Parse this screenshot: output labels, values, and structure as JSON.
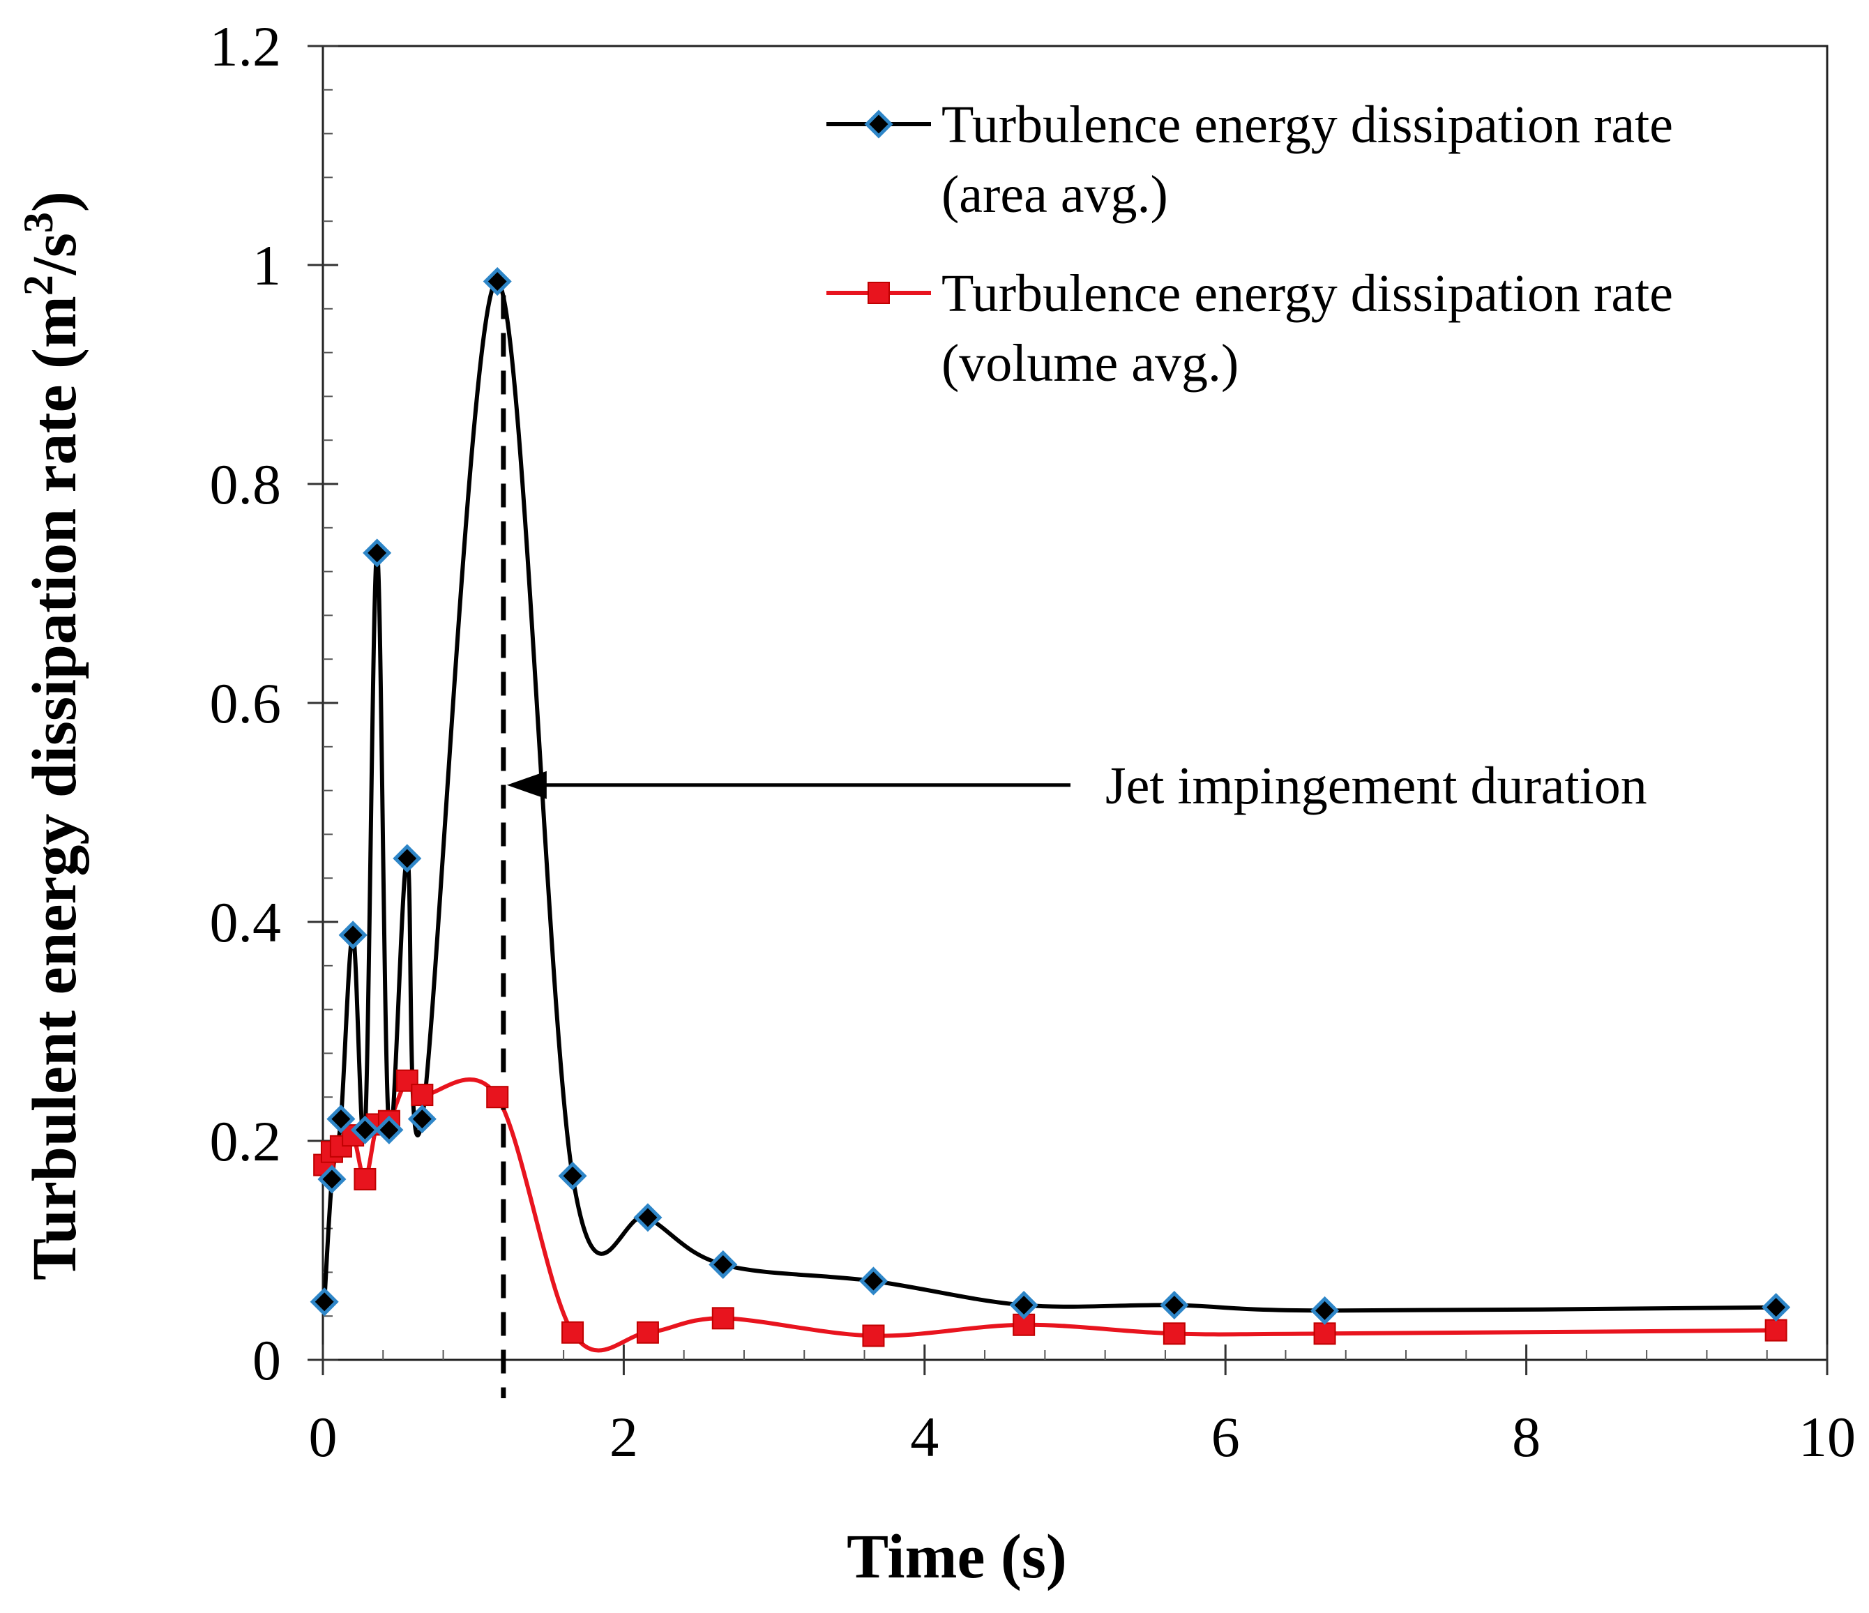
{
  "chart_data": {
    "type": "line",
    "title": "",
    "xlabel": "Time (s)",
    "ylabel": "Turbulent energy dissipation rate (m",
    "ylabel_sup1": "2",
    "ylabel_mid": "/s",
    "ylabel_sup2": "3",
    "ylabel_end": ")",
    "xlim": [
      0,
      10
    ],
    "ylim": [
      0,
      1.2
    ],
    "xticks": [
      0,
      2,
      4,
      6,
      8,
      10
    ],
    "xtick_labels": [
      "0",
      "2",
      "4",
      "6",
      "8",
      "10"
    ],
    "yticks": [
      0,
      0.2,
      0.4,
      0.6,
      0.8,
      1,
      1.2
    ],
    "ytick_labels": [
      "0",
      "0.2",
      "0.4",
      "0.6",
      "0.8",
      "1",
      "1.2"
    ],
    "grid": false,
    "legend_position": "top-right",
    "series": [
      {
        "name": "area",
        "legend_line1": "Turbulence energy dissipation rate",
        "legend_line2": "(area avg.)",
        "color": "#000000",
        "marker": "diamond",
        "marker_fill": "#000000",
        "marker_edge": "#2e86c8",
        "x": [
          0.01,
          0.06,
          0.12,
          0.2,
          0.28,
          0.36,
          0.44,
          0.56,
          0.66,
          1.16,
          1.66,
          2.16,
          2.66,
          3.66,
          4.66,
          5.66,
          6.66,
          9.66
        ],
        "y": [
          0.053,
          0.165,
          0.22,
          0.388,
          0.21,
          0.737,
          0.21,
          0.458,
          0.22,
          0.985,
          0.168,
          0.13,
          0.087,
          0.072,
          0.05,
          0.05,
          0.045,
          0.048
        ]
      },
      {
        "name": "volume",
        "legend_line1": "Turbulence energy dissipation rate",
        "legend_line2": "(volume avg.)",
        "color": "#e8141e",
        "marker": "square",
        "marker_fill": "#e8141e",
        "marker_edge": "#c00000",
        "x": [
          0.01,
          0.06,
          0.12,
          0.2,
          0.28,
          0.36,
          0.44,
          0.56,
          0.66,
          1.16,
          1.66,
          2.16,
          2.66,
          3.66,
          4.66,
          5.66,
          6.66,
          9.66
        ],
        "y": [
          0.178,
          0.19,
          0.195,
          0.205,
          0.165,
          0.215,
          0.218,
          0.255,
          0.242,
          0.24,
          0.025,
          0.025,
          0.038,
          0.022,
          0.032,
          0.024,
          0.024,
          0.027
        ]
      }
    ],
    "annotations": [
      {
        "text": "Jet impingement duration",
        "vline_x": 1.2,
        "arrow_y": 0.525
      }
    ]
  }
}
